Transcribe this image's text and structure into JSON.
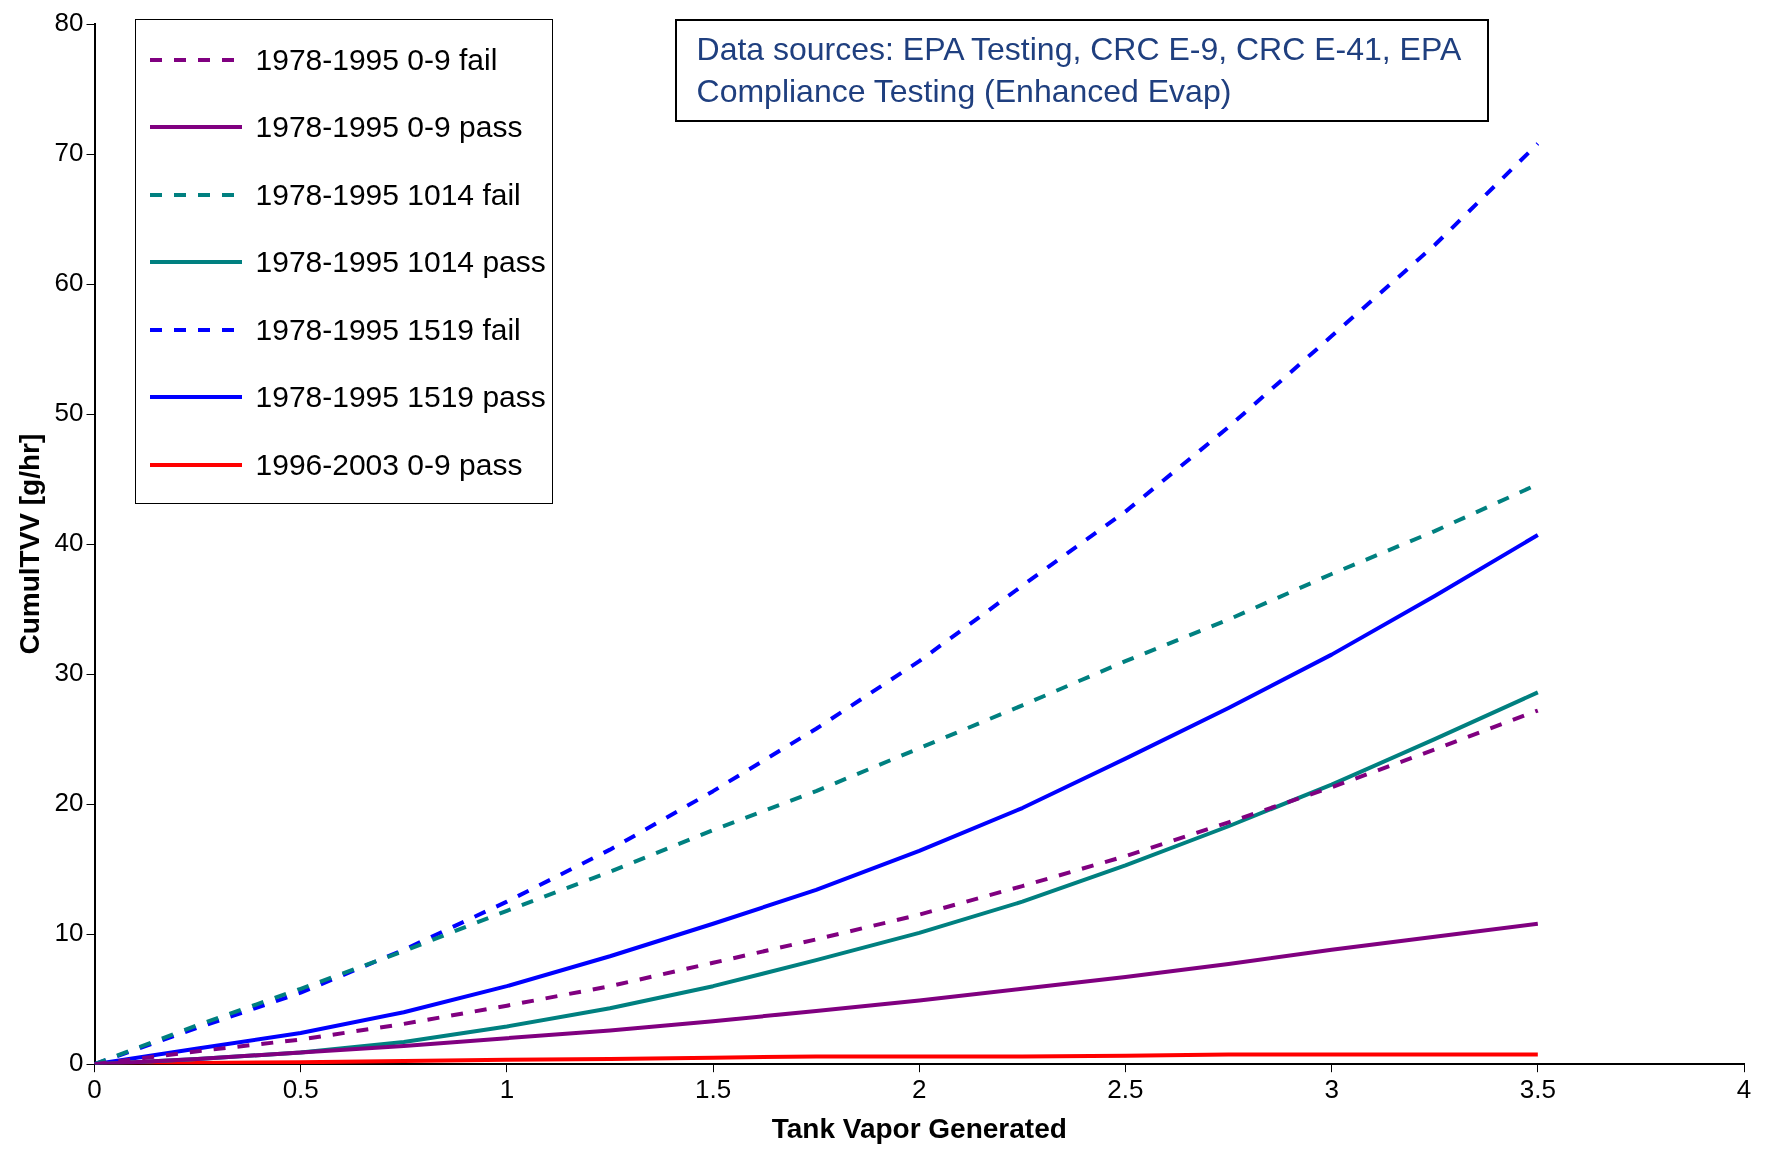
{
  "chart_data": {
    "type": "line",
    "xlabel": "Tank Vapor Generated",
    "ylabel": "CumulTVV [g/hr]",
    "annotations": [
      "Data sources:  EPA Testing, CRC E-9, CRC E-41, EPA Compliance Testing (Enhanced Evap)"
    ],
    "x": [
      0,
      0.25,
      0.5,
      0.75,
      1,
      1.25,
      1.5,
      1.75,
      2,
      2.25,
      2.5,
      2.75,
      3,
      3.25,
      3.5
    ],
    "xlim": [
      0,
      4
    ],
    "xticks": [
      0,
      0.5,
      1,
      1.5,
      2,
      2.5,
      3,
      3.5,
      4
    ],
    "ylim": [
      0,
      80
    ],
    "yticks": [
      0,
      10,
      20,
      30,
      40,
      50,
      60,
      70,
      80
    ],
    "grid": false,
    "legend": "top left",
    "marker": "none",
    "series": [
      {
        "name": "1978-1995 0-9 fail",
        "color": "#800080",
        "line_style": "dashed",
        "values": [
          0,
          1,
          1.9,
          3.1,
          4.5,
          6,
          7.8,
          9.6,
          11.5,
          13.7,
          16,
          18.6,
          21.3,
          24.2,
          27.2
        ]
      },
      {
        "name": "1978-1995 0-9 pass",
        "color": "#800080",
        "line_style": "solid",
        "values": [
          0,
          0.4,
          0.9,
          1.4,
          2,
          2.6,
          3.3,
          4.1,
          4.9,
          5.8,
          6.7,
          7.7,
          8.8,
          9.8,
          10.8
        ]
      },
      {
        "name": "1978-1995 1014 fail",
        "color": "#008080",
        "line_style": "dashed",
        "values": [
          0,
          3,
          5.8,
          8.7,
          11.8,
          14.8,
          18,
          21,
          24.3,
          27.6,
          31,
          34.2,
          37.7,
          41,
          44.6
        ]
      },
      {
        "name": "1978-1995 1014 pass",
        "color": "#008080",
        "line_style": "solid",
        "values": [
          0,
          0.4,
          0.9,
          1.7,
          2.9,
          4.3,
          6,
          8,
          10.1,
          12.5,
          15.3,
          18.3,
          21.5,
          25,
          28.6
        ]
      },
      {
        "name": "1978-1995 1519 fail",
        "color": "#0000ff",
        "line_style": "dashed",
        "values": [
          0,
          2.8,
          5.5,
          8.8,
          12.5,
          16.5,
          21,
          25.8,
          31,
          36.8,
          42.5,
          49,
          56,
          63,
          70.8
        ]
      },
      {
        "name": "1978-1995 1519 pass",
        "color": "#0000ff",
        "line_style": "solid",
        "values": [
          0,
          1.2,
          2.4,
          4,
          6,
          8.3,
          10.8,
          13.4,
          16.4,
          19.7,
          23.5,
          27.4,
          31.5,
          36,
          40.7
        ]
      },
      {
        "name": "1996-2003 0-9 pass",
        "color": "#ff0000",
        "line_style": "solid",
        "values": [
          0,
          0.1,
          0.15,
          0.25,
          0.35,
          0.4,
          0.5,
          0.6,
          0.6,
          0.6,
          0.65,
          0.75,
          0.75,
          0.75,
          0.75
        ]
      }
    ]
  }
}
